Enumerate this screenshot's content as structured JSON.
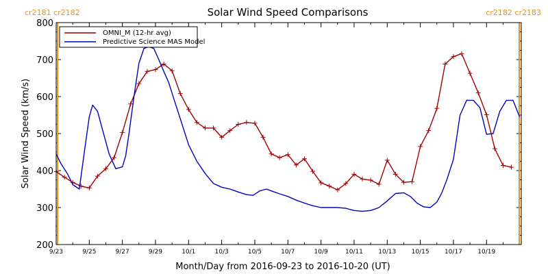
{
  "chart_data": {
    "type": "line",
    "title": "Solar Wind Speed Comparisons",
    "xlabel": "Month/Day from 2016-09-23 to 2016-10-20 (UT)",
    "ylabel": "Solar Wind Speed (km/s)",
    "ylim": [
      200,
      800
    ],
    "yticks": [
      200,
      300,
      400,
      500,
      600,
      700,
      800
    ],
    "xlim_days": [
      0,
      28.1
    ],
    "xticks": [
      {
        "day": 0,
        "label": "9/23"
      },
      {
        "day": 2,
        "label": "9/25"
      },
      {
        "day": 4,
        "label": "9/27"
      },
      {
        "day": 6,
        "label": "9/29"
      },
      {
        "day": 8,
        "label": "10/1"
      },
      {
        "day": 10,
        "label": "10/3"
      },
      {
        "day": 12,
        "label": "10/5"
      },
      {
        "day": 14,
        "label": "10/7"
      },
      {
        "day": 16,
        "label": "10/9"
      },
      {
        "day": 18,
        "label": "10/11"
      },
      {
        "day": 20,
        "label": "10/13"
      },
      {
        "day": 22,
        "label": "10/15"
      },
      {
        "day": 24,
        "label": "10/17"
      },
      {
        "day": 26,
        "label": "10/19"
      }
    ],
    "grid": false,
    "legend": "top-left",
    "carrington_left": "cr2181 cr2182",
    "carrington_right": "cr2182 cr2183",
    "carrington_lines_days": [
      0,
      28.1
    ],
    "carrington_color": "#e69320",
    "series": [
      {
        "name": "OMNI_M (12-hr avg)",
        "color": "#a00000",
        "marker": "plus",
        "x": [
          0,
          0.5,
          1,
          1.5,
          2,
          2.5,
          3,
          3.5,
          4,
          4.5,
          5,
          5.5,
          6,
          6.5,
          7,
          7.5,
          8,
          8.5,
          9,
          9.5,
          10,
          10.5,
          11,
          11.5,
          12,
          12.5,
          13,
          13.5,
          14,
          14.5,
          15,
          15.5,
          16,
          16.5,
          17,
          17.5,
          18,
          18.5,
          19,
          19.5,
          20,
          20.5,
          21,
          21.5,
          22,
          22.5,
          23,
          23.5,
          24,
          24.5,
          25,
          25.5,
          26,
          26.5,
          27,
          27.5
        ],
        "values": [
          397,
          382,
          368,
          358,
          353,
          385,
          405,
          435,
          503,
          580,
          635,
          668,
          673,
          688,
          670,
          608,
          565,
          530,
          515,
          515,
          490,
          508,
          525,
          530,
          528,
          490,
          445,
          435,
          443,
          415,
          432,
          398,
          367,
          358,
          348,
          365,
          390,
          377,
          374,
          363,
          428,
          390,
          368,
          370,
          465,
          508,
          568,
          688,
          708,
          716,
          663,
          610,
          551,
          459,
          414,
          409
        ]
      },
      {
        "name": "Predictive Science MAS Model",
        "color": "#0000c0",
        "marker": "none",
        "x": [
          0,
          0.3,
          0.7,
          1.0,
          1.4,
          1.7,
          2.0,
          2.2,
          2.5,
          2.8,
          3.2,
          3.6,
          4.0,
          4.2,
          4.4,
          4.7,
          5.0,
          5.3,
          5.6,
          5.9,
          6.2,
          6.5,
          6.8,
          7.1,
          7.5,
          8.0,
          8.5,
          9.0,
          9.5,
          10.0,
          10.5,
          11.0,
          11.5,
          11.9,
          12.3,
          12.7,
          13.0,
          13.5,
          14.0,
          14.5,
          15.0,
          15.5,
          16.0,
          16.5,
          17.0,
          17.5,
          18.0,
          18.5,
          19.0,
          19.5,
          20.0,
          20.5,
          21.0,
          21.4,
          21.8,
          22.2,
          22.6,
          23.0,
          23.3,
          23.6,
          24.0,
          24.4,
          24.8,
          25.2,
          25.6,
          26.0,
          26.4,
          26.8,
          27.2,
          27.6,
          28.0
        ],
        "values": [
          445,
          418,
          390,
          362,
          350,
          450,
          545,
          577,
          560,
          510,
          445,
          405,
          410,
          440,
          500,
          600,
          690,
          730,
          735,
          730,
          700,
          668,
          638,
          595,
          540,
          470,
          425,
          392,
          365,
          355,
          350,
          342,
          335,
          333,
          345,
          350,
          345,
          337,
          330,
          320,
          312,
          305,
          300,
          300,
          300,
          298,
          292,
          290,
          292,
          300,
          318,
          338,
          340,
          330,
          312,
          302,
          300,
          315,
          340,
          375,
          430,
          550,
          590,
          590,
          570,
          498,
          500,
          560,
          590,
          590,
          545
        ]
      }
    ]
  }
}
